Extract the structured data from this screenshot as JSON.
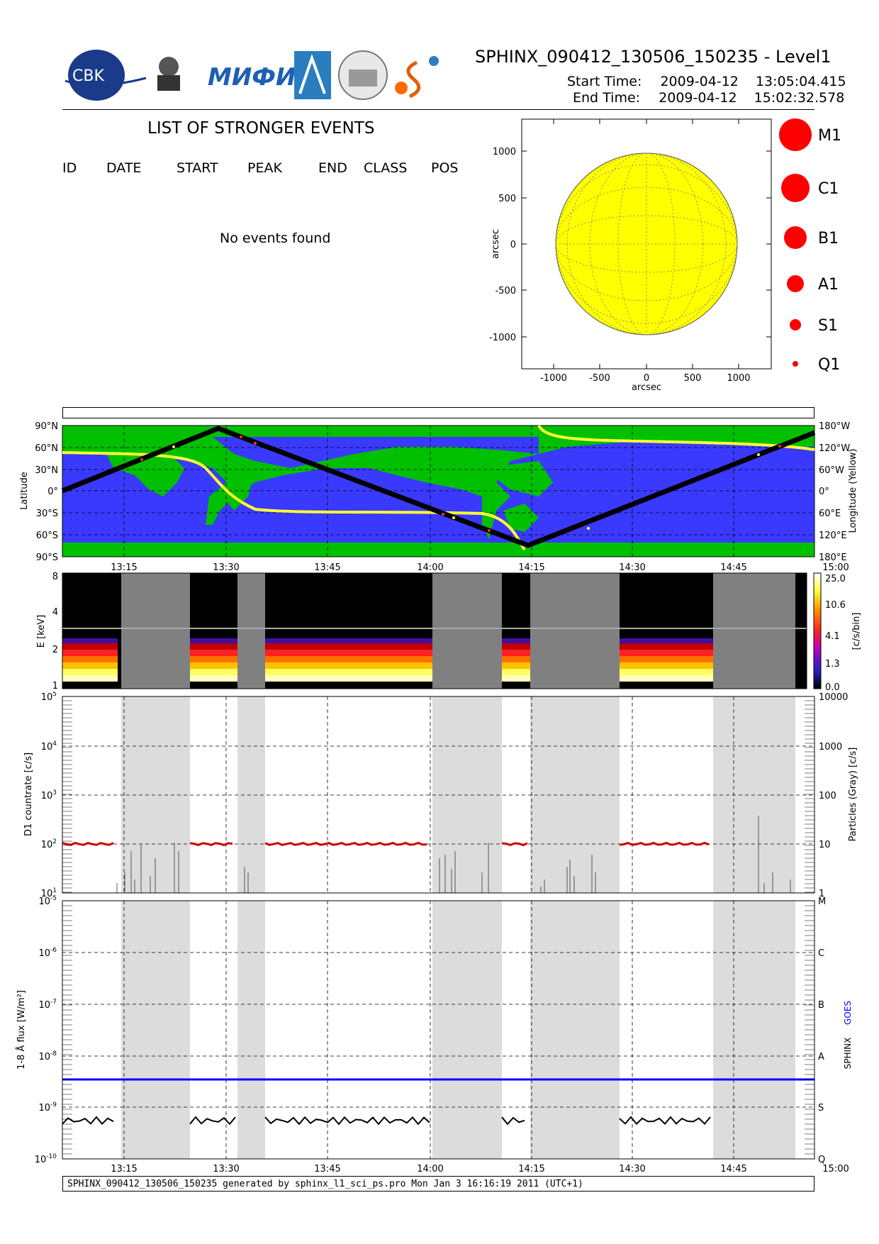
{
  "header": {
    "title": "SPHINX_090412_130506_150235 - Level1",
    "start_label": "Start Time:",
    "start_date": "2009-04-12",
    "start_time": "13:05:04.415",
    "end_label": "End Time:",
    "end_date": "2009-04-12",
    "end_time": "15:02:32.578",
    "logos": [
      "CBK PAN",
      "P.N.Lebedev Physical Institute of the Russian Academy of Science",
      "MIFI",
      "ISAS",
      "Observatory",
      "SphinX"
    ]
  },
  "events": {
    "title": "LIST OF STRONGER EVENTS",
    "columns": [
      "ID",
      "DATE",
      "START",
      "PEAK",
      "END",
      "CLASS",
      "POS"
    ],
    "empty_text": "No events found"
  },
  "legend": {
    "labels": [
      "M1",
      "C1",
      "B1",
      "A1",
      "S1",
      "Q1"
    ],
    "color": "#ff0000"
  },
  "colors": {
    "sun": "#ffff00",
    "land": "#00c000",
    "ocean": "#3030ff",
    "gray_band": "#dcdcdc",
    "sphinx_count": "#cc0000",
    "goes": "#0000ff"
  },
  "chart_data": [
    {
      "type": "scatter",
      "title": "",
      "xlabel": "arcsec",
      "ylabel": "arcsec",
      "xlim": [
        -1350,
        1350
      ],
      "ylim": [
        -1350,
        1350
      ],
      "x_ticks": [
        "-1000",
        "-500",
        "0",
        "500",
        "1000"
      ],
      "y_ticks": [
        "1000",
        "500",
        "0",
        "-500",
        "-1000"
      ],
      "series": []
    },
    {
      "type": "line",
      "ylabel": "Latitude",
      "y2label": "Longitude (Yellow)",
      "y_ticks": [
        "90°N",
        "60°N",
        "30°N",
        "0°",
        "30°S",
        "60°S",
        "90°S"
      ],
      "y2_ticks": [
        "180°W",
        "120°W",
        "60°W",
        "0°",
        "60°E",
        "120°E",
        "180°E"
      ],
      "x_ticks": [
        "13:15",
        "13:30",
        "13:45",
        "14:00",
        "14:15",
        "14:30",
        "14:45",
        "15:00"
      ]
    },
    {
      "type": "heatmap",
      "ylabel": "E [keV]",
      "y_ticks": [
        "8",
        "4",
        "2",
        "1"
      ],
      "colorbar_label": "[c/s/bin]",
      "colorbar_ticks": [
        "25.0",
        "10.6",
        "4.1",
        "1.3",
        "0.0"
      ]
    },
    {
      "type": "line",
      "ylabel": "D1 countrate [c/s]",
      "y2label": "Particles (Gray) [c/s]",
      "y_ticks": [
        "10^5",
        "10^4",
        "10^3",
        "10^2",
        "10^1"
      ],
      "y2_ticks": [
        "10000",
        "1000",
        "100",
        "10",
        "1"
      ],
      "x_ticks": [
        "13:15",
        "13:30",
        "13:45",
        "14:00",
        "14:15",
        "14:30",
        "14:45",
        "15:00"
      ]
    },
    {
      "type": "line",
      "ylabel": "1-8 Å flux [W/m²]",
      "y2label_sphinx": "SPHINX",
      "y2label_goes": "GOES",
      "y_ticks": [
        "10^-5",
        "10^-6",
        "10^-7",
        "10^-8",
        "10^-9",
        "10^-10"
      ],
      "class_ticks": [
        "M",
        "C",
        "B",
        "A",
        "S",
        "Q"
      ],
      "goes_level": 3.8e-09,
      "x_ticks": [
        "13:15",
        "13:30",
        "13:45",
        "14:00",
        "14:15",
        "14:30",
        "14:45",
        "15:00"
      ]
    }
  ],
  "footer": "SPHINX_090412_130506_150235 generated by sphinx_l1_sci_ps.pro Mon Jan  3 16:16:19 2011 (UTC+1)"
}
